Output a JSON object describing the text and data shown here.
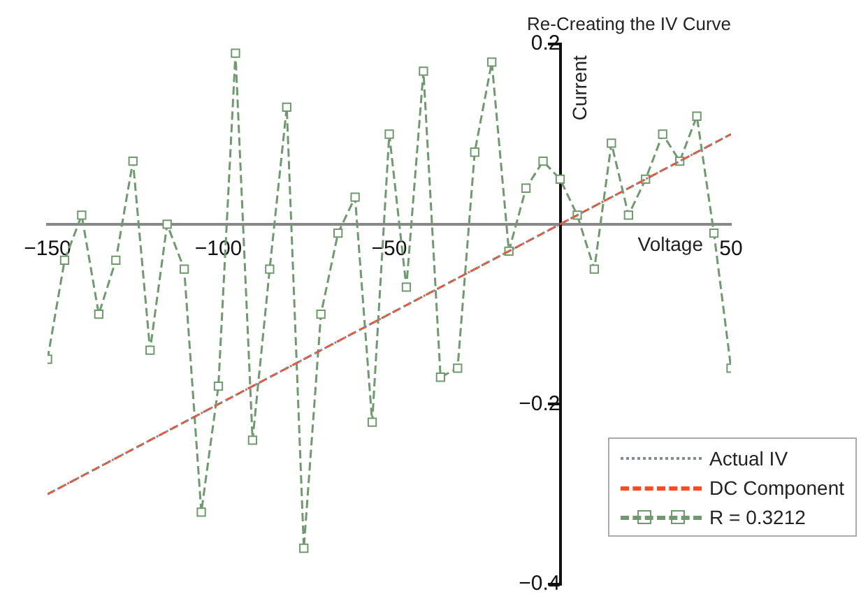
{
  "chart_data": {
    "type": "line",
    "title": "Re-Creating the IV Curve",
    "xlabel": "Voltage",
    "ylabel": "Current",
    "xlim": [
      -150,
      50
    ],
    "xticks": [
      -150,
      -100,
      -50,
      50
    ],
    "ylim": [
      -0.4,
      0.2
    ],
    "yticks": [
      -0.4,
      -0.2,
      0.2
    ],
    "grid": false,
    "legend": "bottom right",
    "series": [
      {
        "name": "Actual IV",
        "color": "#7f8ca0",
        "line_style": "dotted",
        "marker": "none",
        "x": [
          -150,
          50
        ],
        "values": [
          -0.3,
          0.1
        ]
      },
      {
        "name": "DC Component",
        "color": "#ff4b1f",
        "line_style": "dashed",
        "marker": "none",
        "x": [
          -150,
          50
        ],
        "values": [
          -0.3,
          0.1
        ]
      },
      {
        "name": "R = 0.3212",
        "color": "#6e9a6e",
        "line_style": "dashed",
        "marker": "square",
        "x": [
          -150,
          -145,
          -140,
          -135,
          -130,
          -125,
          -120,
          -115,
          -110,
          -105,
          -100,
          -95,
          -90,
          -85,
          -80,
          -75,
          -70,
          -65,
          -60,
          -55,
          -50,
          -45,
          -40,
          -35,
          -30,
          -25,
          -20,
          -15,
          -10,
          -5,
          0,
          5,
          10,
          15,
          20,
          25,
          30,
          35,
          40,
          45,
          50
        ],
        "values": [
          -0.15,
          -0.04,
          0.01,
          -0.1,
          -0.04,
          0.07,
          -0.14,
          0,
          -0.05,
          -0.32,
          -0.18,
          0.19,
          -0.24,
          -0.05,
          0.13,
          -0.36,
          -0.1,
          -0.01,
          0.03,
          -0.22,
          0.1,
          -0.07,
          0.17,
          -0.17,
          -0.16,
          0.08,
          0.18,
          -0.03,
          0.04,
          0.07,
          0.05,
          0.01,
          -0.05,
          0.09,
          0.01,
          0.05,
          0.1,
          0.07,
          0.12,
          -0.01,
          -0.16
        ]
      }
    ]
  }
}
